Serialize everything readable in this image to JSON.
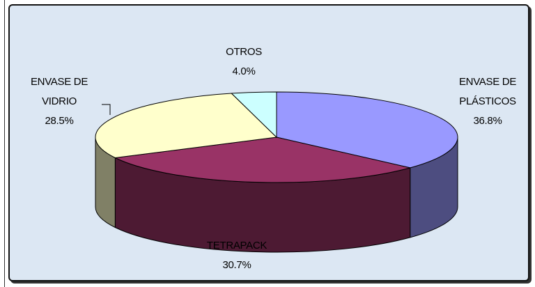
{
  "chart_data": {
    "type": "pie",
    "categories": [
      "ENVASE DE PLÁSTICOS",
      "TETRAPACK",
      "ENVASE DE VIDRIO",
      "OTROS"
    ],
    "values": [
      36.8,
      30.7,
      28.5,
      4.0
    ],
    "value_labels": [
      "36.8%",
      "30.7%",
      "28.5%",
      "4.0%"
    ],
    "colors": [
      "#9999ff",
      "#993366",
      "#ffffcc",
      "#ccffff"
    ],
    "side_colors": [
      "#4d4d80",
      "#4d1a33",
      "#808066",
      "#668080"
    ]
  }
}
